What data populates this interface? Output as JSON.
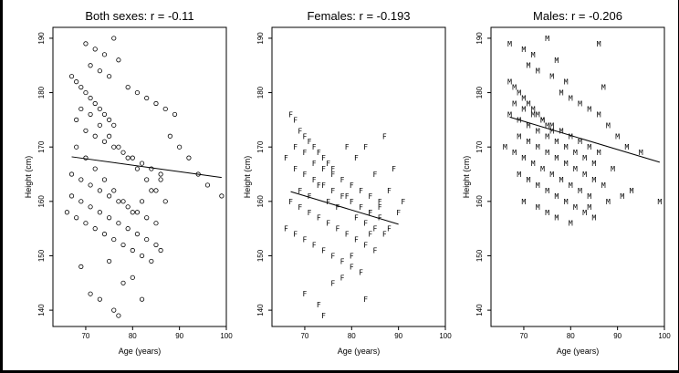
{
  "chart_data": [
    {
      "type": "scatter",
      "title": "Both sexes: r = -0.11",
      "xlabel": "Age (years)",
      "ylabel": "Height (cm)",
      "xlim": [
        63,
        100
      ],
      "ylim": [
        137,
        192
      ],
      "xticks": [
        "70",
        "80",
        "90",
        "100"
      ],
      "yticks": [
        "140",
        "150",
        "160",
        "170",
        "180",
        "190"
      ],
      "marker": "circle",
      "fit_line": [
        [
          67,
          168.2
        ],
        [
          99,
          164.4
        ]
      ],
      "points": [
        [
          67,
          183
        ],
        [
          68,
          182
        ],
        [
          69,
          181
        ],
        [
          70,
          180
        ],
        [
          71,
          179
        ],
        [
          72,
          178
        ],
        [
          73,
          177
        ],
        [
          74,
          176
        ],
        [
          75,
          175
        ],
        [
          76,
          174
        ],
        [
          68,
          175
        ],
        [
          70,
          173
        ],
        [
          72,
          172
        ],
        [
          74,
          171
        ],
        [
          76,
          170
        ],
        [
          78,
          169
        ],
        [
          80,
          168
        ],
        [
          82,
          167
        ],
        [
          84,
          166
        ],
        [
          86,
          165
        ],
        [
          67,
          165
        ],
        [
          69,
          164
        ],
        [
          71,
          163
        ],
        [
          73,
          162
        ],
        [
          75,
          161
        ],
        [
          77,
          160
        ],
        [
          79,
          159
        ],
        [
          81,
          158
        ],
        [
          83,
          157
        ],
        [
          85,
          156
        ],
        [
          66,
          158
        ],
        [
          68,
          157
        ],
        [
          70,
          156
        ],
        [
          72,
          155
        ],
        [
          74,
          154
        ],
        [
          76,
          153
        ],
        [
          78,
          152
        ],
        [
          80,
          151
        ],
        [
          82,
          150
        ],
        [
          84,
          149
        ],
        [
          70,
          189
        ],
        [
          72,
          188
        ],
        [
          74,
          187
        ],
        [
          76,
          190
        ],
        [
          77,
          186
        ],
        [
          71,
          185
        ],
        [
          73,
          184
        ],
        [
          75,
          183
        ],
        [
          79,
          181
        ],
        [
          81,
          180
        ],
        [
          83,
          179
        ],
        [
          85,
          178
        ],
        [
          87,
          177
        ],
        [
          89,
          176
        ],
        [
          88,
          172
        ],
        [
          90,
          170
        ],
        [
          92,
          168
        ],
        [
          94,
          165
        ],
        [
          96,
          163
        ],
        [
          99,
          161
        ],
        [
          71,
          143
        ],
        [
          73,
          142
        ],
        [
          76,
          140
        ],
        [
          78,
          145
        ],
        [
          80,
          146
        ],
        [
          82,
          142
        ],
        [
          77,
          139
        ],
        [
          69,
          148
        ],
        [
          75,
          149
        ],
        [
          86,
          151
        ],
        [
          68,
          170
        ],
        [
          70,
          168
        ],
        [
          72,
          166
        ],
        [
          74,
          164
        ],
        [
          76,
          162
        ],
        [
          78,
          160
        ],
        [
          80,
          158
        ],
        [
          82,
          160
        ],
        [
          84,
          162
        ],
        [
          86,
          164
        ],
        [
          69,
          177
        ],
        [
          71,
          176
        ],
        [
          73,
          174
        ],
        [
          75,
          172
        ],
        [
          77,
          170
        ],
        [
          79,
          168
        ],
        [
          81,
          166
        ],
        [
          83,
          164
        ],
        [
          85,
          162
        ],
        [
          87,
          160
        ],
        [
          67,
          161
        ],
        [
          69,
          160
        ],
        [
          71,
          159
        ],
        [
          73,
          158
        ],
        [
          75,
          157
        ],
        [
          77,
          156
        ],
        [
          79,
          155
        ],
        [
          81,
          154
        ],
        [
          83,
          153
        ],
        [
          85,
          152
        ]
      ]
    },
    {
      "type": "scatter",
      "title": "Females: r = -0.193",
      "xlabel": "Age (years)",
      "ylabel": "Height (cm)",
      "xlim": [
        63,
        100
      ],
      "ylim": [
        137,
        192
      ],
      "xticks": [
        "70",
        "80",
        "90",
        "100"
      ],
      "yticks": [
        "140",
        "150",
        "160",
        "170",
        "180",
        "190"
      ],
      "marker": "F",
      "fit_line": [
        [
          67,
          161.8
        ],
        [
          90,
          155.8
        ]
      ],
      "points": [
        [
          67,
          176
        ],
        [
          68,
          175
        ],
        [
          69,
          173
        ],
        [
          70,
          172
        ],
        [
          71,
          171
        ],
        [
          72,
          170
        ],
        [
          73,
          169
        ],
        [
          74,
          168
        ],
        [
          75,
          167
        ],
        [
          76,
          166
        ],
        [
          66,
          168
        ],
        [
          68,
          166
        ],
        [
          70,
          165
        ],
        [
          72,
          164
        ],
        [
          74,
          163
        ],
        [
          76,
          162
        ],
        [
          78,
          161
        ],
        [
          80,
          160
        ],
        [
          82,
          159
        ],
        [
          84,
          158
        ],
        [
          67,
          160
        ],
        [
          69,
          159
        ],
        [
          71,
          158
        ],
        [
          73,
          157
        ],
        [
          75,
          156
        ],
        [
          77,
          155
        ],
        [
          79,
          154
        ],
        [
          81,
          153
        ],
        [
          83,
          152
        ],
        [
          85,
          151
        ],
        [
          66,
          155
        ],
        [
          68,
          154
        ],
        [
          70,
          153
        ],
        [
          72,
          152
        ],
        [
          74,
          151
        ],
        [
          76,
          150
        ],
        [
          78,
          149
        ],
        [
          80,
          148
        ],
        [
          82,
          147
        ],
        [
          84,
          158
        ],
        [
          86,
          160
        ],
        [
          88,
          162
        ],
        [
          90,
          158
        ],
        [
          87,
          172
        ],
        [
          89,
          166
        ],
        [
          91,
          160
        ],
        [
          85,
          165
        ],
        [
          83,
          170
        ],
        [
          81,
          168
        ],
        [
          79,
          170
        ],
        [
          70,
          143
        ],
        [
          73,
          141
        ],
        [
          76,
          145
        ],
        [
          74,
          139
        ],
        [
          78,
          146
        ],
        [
          83,
          142
        ],
        [
          80,
          150
        ],
        [
          84,
          154
        ],
        [
          86,
          157
        ],
        [
          88,
          155
        ],
        [
          69,
          162
        ],
        [
          71,
          161
        ],
        [
          73,
          163
        ],
        [
          75,
          160
        ],
        [
          77,
          159
        ],
        [
          79,
          161
        ],
        [
          81,
          157
        ],
        [
          83,
          156
        ],
        [
          85,
          155
        ],
        [
          87,
          154
        ],
        [
          68,
          170
        ],
        [
          70,
          169
        ],
        [
          72,
          167
        ],
        [
          74,
          166
        ],
        [
          76,
          165
        ],
        [
          78,
          164
        ],
        [
          80,
          163
        ],
        [
          82,
          162
        ],
        [
          84,
          161
        ],
        [
          86,
          159
        ]
      ]
    },
    {
      "type": "scatter",
      "title": "Males: r = -0.206",
      "xlabel": "Age (years)",
      "ylabel": "Height (cm)",
      "xlim": [
        63,
        100
      ],
      "ylim": [
        137,
        192
      ],
      "xticks": [
        "70",
        "80",
        "90",
        "100"
      ],
      "yticks": [
        "140",
        "150",
        "160",
        "170",
        "180",
        "190"
      ],
      "marker": "M",
      "fit_line": [
        [
          67,
          175.5
        ],
        [
          99,
          167.2
        ]
      ],
      "points": [
        [
          67,
          189
        ],
        [
          70,
          188
        ],
        [
          72,
          187
        ],
        [
          75,
          190
        ],
        [
          77,
          186
        ],
        [
          86,
          189
        ],
        [
          71,
          185
        ],
        [
          73,
          184
        ],
        [
          76,
          183
        ],
        [
          79,
          182
        ],
        [
          67,
          182
        ],
        [
          68,
          181
        ],
        [
          69,
          180
        ],
        [
          70,
          179
        ],
        [
          71,
          178
        ],
        [
          72,
          177
        ],
        [
          73,
          176
        ],
        [
          74,
          175
        ],
        [
          75,
          174
        ],
        [
          76,
          173
        ],
        [
          67,
          176
        ],
        [
          69,
          175
        ],
        [
          71,
          174
        ],
        [
          73,
          173
        ],
        [
          75,
          172
        ],
        [
          77,
          171
        ],
        [
          79,
          170
        ],
        [
          81,
          169
        ],
        [
          83,
          168
        ],
        [
          85,
          167
        ],
        [
          66,
          170
        ],
        [
          68,
          169
        ],
        [
          70,
          168
        ],
        [
          72,
          167
        ],
        [
          74,
          166
        ],
        [
          76,
          165
        ],
        [
          78,
          164
        ],
        [
          80,
          163
        ],
        [
          82,
          162
        ],
        [
          84,
          161
        ],
        [
          70,
          160
        ],
        [
          73,
          159
        ],
        [
          75,
          158
        ],
        [
          77,
          157
        ],
        [
          80,
          156
        ],
        [
          84,
          159
        ],
        [
          88,
          160
        ],
        [
          91,
          161
        ],
        [
          93,
          162
        ],
        [
          99,
          160
        ],
        [
          78,
          180
        ],
        [
          80,
          179
        ],
        [
          82,
          178
        ],
        [
          84,
          177
        ],
        [
          86,
          176
        ],
        [
          88,
          174
        ],
        [
          90,
          172
        ],
        [
          92,
          170
        ],
        [
          95,
          169
        ],
        [
          87,
          181
        ],
        [
          69,
          172
        ],
        [
          71,
          171
        ],
        [
          73,
          170
        ],
        [
          75,
          169
        ],
        [
          77,
          168
        ],
        [
          79,
          167
        ],
        [
          81,
          166
        ],
        [
          83,
          165
        ],
        [
          85,
          164
        ],
        [
          87,
          163
        ],
        [
          68,
          178
        ],
        [
          70,
          177
        ],
        [
          72,
          176
        ],
        [
          74,
          175
        ],
        [
          76,
          174
        ],
        [
          78,
          173
        ],
        [
          80,
          172
        ],
        [
          82,
          171
        ],
        [
          84,
          170
        ],
        [
          86,
          169
        ],
        [
          69,
          165
        ],
        [
          71,
          164
        ],
        [
          73,
          163
        ],
        [
          75,
          162
        ],
        [
          77,
          161
        ],
        [
          79,
          160
        ],
        [
          81,
          159
        ],
        [
          83,
          158
        ],
        [
          85,
          157
        ],
        [
          89,
          166
        ]
      ]
    }
  ]
}
